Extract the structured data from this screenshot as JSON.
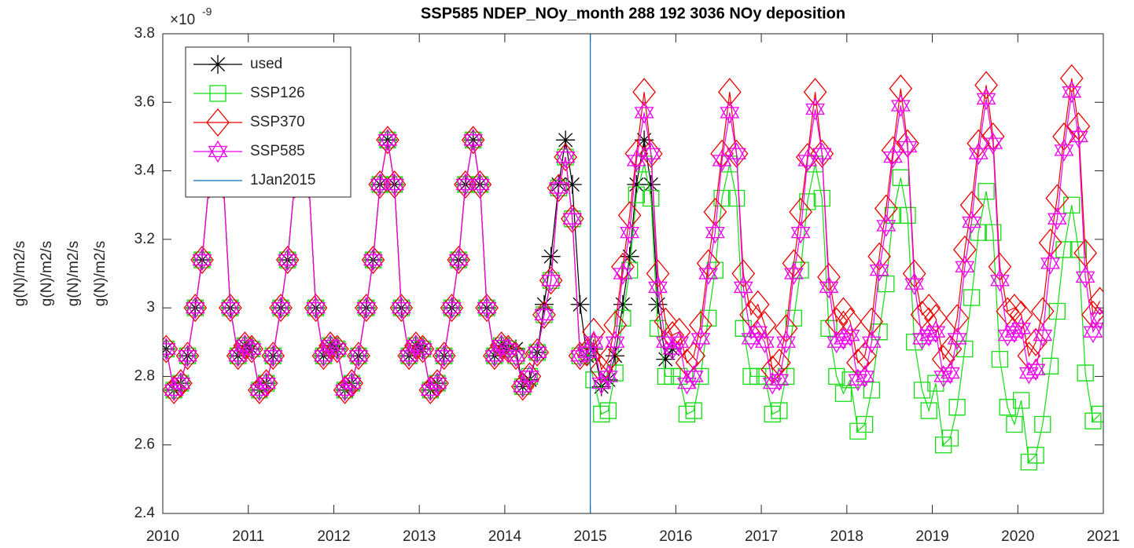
{
  "chart_data": {
    "type": "line",
    "title": "SSP585 NDEP_NOy_month  288 192 3036   NOy deposition",
    "ylabel": [
      "g(N)/m2/s",
      "g(N)/m2/s",
      "g(N)/m2/s",
      "g(N)/m2/s"
    ],
    "y_multiplier": {
      "base": "×10",
      "exponent": "-9"
    },
    "xlim": [
      2010,
      2021
    ],
    "xticks": [
      2010,
      2011,
      2012,
      2013,
      2014,
      2015,
      2016,
      2017,
      2018,
      2019,
      2020,
      2021
    ],
    "ylim": [
      2.4,
      3.8
    ],
    "yticks": [
      2.4,
      2.6,
      2.8,
      3,
      3.2,
      3.4,
      3.6,
      3.8
    ],
    "legend": "northwest",
    "grid": false,
    "x": [
      2010.04,
      2010.13,
      2010.21,
      2010.29,
      2010.38,
      2010.46,
      2010.54,
      2010.63,
      2010.71,
      2010.79,
      2010.88,
      2010.96,
      2011.04,
      2011.13,
      2011.21,
      2011.29,
      2011.38,
      2011.46,
      2011.54,
      2011.63,
      2011.71,
      2011.79,
      2011.88,
      2011.96,
      2012.04,
      2012.13,
      2012.21,
      2012.29,
      2012.38,
      2012.46,
      2012.54,
      2012.63,
      2012.71,
      2012.79,
      2012.88,
      2012.96,
      2013.04,
      2013.13,
      2013.21,
      2013.29,
      2013.38,
      2013.46,
      2013.54,
      2013.63,
      2013.71,
      2013.79,
      2013.88,
      2013.96,
      2014.04,
      2014.13,
      2014.21,
      2014.29,
      2014.38,
      2014.46,
      2014.54,
      2014.63,
      2014.71,
      2014.79,
      2014.88,
      2014.96,
      2015.04,
      2015.13,
      2015.21,
      2015.29,
      2015.38,
      2015.46,
      2015.54,
      2015.63,
      2015.71,
      2015.79,
      2015.88,
      2015.96,
      2016.04,
      2016.13,
      2016.21,
      2016.29,
      2016.38,
      2016.46,
      2016.54,
      2016.63,
      2016.71,
      2016.79,
      2016.88,
      2016.96,
      2017.04,
      2017.13,
      2017.21,
      2017.29,
      2017.38,
      2017.46,
      2017.54,
      2017.63,
      2017.71,
      2017.79,
      2017.88,
      2017.96,
      2018.04,
      2018.13,
      2018.21,
      2018.29,
      2018.38,
      2018.46,
      2018.54,
      2018.63,
      2018.71,
      2018.79,
      2018.88,
      2018.96,
      2019.04,
      2019.13,
      2019.21,
      2019.29,
      2019.38,
      2019.46,
      2019.54,
      2019.63,
      2019.71,
      2019.79,
      2019.88,
      2019.96,
      2020.04,
      2020.13,
      2020.21,
      2020.29,
      2020.38,
      2020.46,
      2020.54,
      2020.63,
      2020.71,
      2020.79,
      2020.88,
      2020.96
    ],
    "series": [
      {
        "name": "used",
        "color": "#000000",
        "marker": "asterisk",
        "values": [
          2.88,
          2.76,
          2.78,
          2.86,
          3.0,
          3.14,
          3.36,
          3.49,
          3.36,
          3.0,
          2.86,
          2.89,
          2.88,
          2.76,
          2.78,
          2.86,
          3.0,
          3.14,
          3.36,
          3.49,
          3.36,
          3.0,
          2.86,
          2.89,
          2.88,
          2.76,
          2.78,
          2.86,
          3.0,
          3.14,
          3.36,
          3.49,
          3.36,
          3.0,
          2.86,
          2.89,
          2.88,
          2.76,
          2.78,
          2.86,
          3.0,
          3.14,
          3.36,
          3.49,
          3.36,
          3.0,
          2.86,
          2.89,
          2.88,
          2.88,
          2.77,
          2.79,
          2.87,
          3.01,
          3.15,
          3.36,
          3.49,
          3.36,
          3.01,
          2.86,
          2.88,
          2.77,
          2.79,
          2.86,
          3.01,
          3.15,
          3.36,
          3.49,
          3.36,
          3.01,
          2.85,
          2.88,
          null,
          null,
          null,
          null,
          null,
          null,
          null,
          null,
          null,
          null,
          null,
          null,
          null,
          null,
          null,
          null,
          null,
          null,
          null,
          null,
          null,
          null,
          null,
          null,
          null,
          null,
          null,
          null,
          null,
          null,
          null,
          null,
          null,
          null,
          null,
          null,
          null,
          null,
          null,
          null,
          null,
          null,
          null,
          null,
          null,
          null,
          null,
          null,
          null,
          null,
          null,
          null,
          null,
          null,
          null,
          null,
          null,
          null,
          null,
          null
        ]
      },
      {
        "name": "SSP126",
        "color": "#11dd11",
        "marker": "square",
        "values": [
          2.88,
          2.76,
          2.78,
          2.86,
          3.0,
          3.14,
          3.36,
          3.49,
          3.36,
          3.0,
          2.86,
          2.89,
          2.88,
          2.76,
          2.78,
          2.86,
          3.0,
          3.14,
          3.36,
          3.49,
          3.36,
          3.0,
          2.86,
          2.89,
          2.88,
          2.76,
          2.78,
          2.86,
          3.0,
          3.14,
          3.36,
          3.49,
          3.36,
          3.0,
          2.86,
          2.89,
          2.88,
          2.76,
          2.78,
          2.86,
          3.0,
          3.14,
          3.36,
          3.49,
          3.36,
          3.0,
          2.86,
          2.89,
          2.88,
          2.86,
          2.77,
          2.8,
          2.87,
          2.98,
          3.08,
          3.35,
          3.44,
          3.26,
          2.86,
          2.87,
          2.79,
          2.69,
          2.7,
          2.81,
          2.97,
          3.11,
          3.33,
          3.42,
          3.32,
          2.94,
          2.8,
          2.8,
          2.8,
          2.69,
          2.7,
          2.8,
          2.97,
          3.11,
          3.32,
          3.42,
          3.32,
          2.94,
          2.8,
          2.8,
          2.8,
          2.69,
          2.7,
          2.8,
          2.97,
          3.11,
          3.31,
          3.42,
          3.32,
          2.94,
          2.8,
          2.75,
          2.79,
          2.64,
          2.66,
          2.76,
          2.93,
          3.07,
          3.27,
          3.38,
          3.27,
          2.9,
          2.76,
          2.7,
          2.78,
          2.6,
          2.62,
          2.71,
          2.88,
          3.03,
          3.22,
          3.34,
          3.22,
          2.85,
          2.71,
          2.66,
          2.73,
          2.55,
          2.57,
          2.66,
          2.83,
          2.99,
          3.17,
          3.3,
          3.17,
          2.81,
          2.67,
          2.69
        ]
      },
      {
        "name": "SSP370",
        "color": "#ee0000",
        "marker": "diamond",
        "values": [
          2.88,
          2.76,
          2.78,
          2.86,
          3.0,
          3.14,
          3.36,
          3.49,
          3.36,
          3.0,
          2.86,
          2.89,
          2.88,
          2.76,
          2.78,
          2.86,
          3.0,
          3.14,
          3.36,
          3.49,
          3.36,
          3.0,
          2.86,
          2.89,
          2.88,
          2.76,
          2.78,
          2.86,
          3.0,
          3.14,
          3.36,
          3.49,
          3.36,
          3.0,
          2.86,
          2.89,
          2.88,
          2.76,
          2.78,
          2.86,
          3.0,
          3.14,
          3.36,
          3.49,
          3.36,
          3.0,
          2.86,
          2.89,
          2.88,
          2.86,
          2.77,
          2.8,
          2.87,
          2.98,
          3.08,
          3.35,
          3.44,
          3.26,
          2.86,
          2.87,
          2.93,
          2.82,
          2.85,
          2.95,
          3.12,
          3.27,
          3.45,
          3.63,
          3.45,
          3.1,
          2.96,
          2.92,
          2.93,
          2.84,
          2.86,
          2.95,
          3.13,
          3.28,
          3.45,
          3.63,
          3.45,
          3.1,
          2.98,
          3.01,
          2.95,
          2.82,
          2.84,
          2.94,
          3.13,
          3.28,
          3.44,
          3.63,
          3.45,
          3.09,
          2.96,
          2.99,
          2.96,
          2.84,
          2.86,
          2.96,
          3.15,
          3.29,
          3.46,
          3.64,
          3.48,
          3.1,
          2.98,
          3.0,
          2.97,
          2.85,
          2.88,
          2.97,
          3.17,
          3.3,
          3.48,
          3.65,
          3.5,
          3.12,
          2.99,
          3.0,
          2.98,
          2.86,
          2.9,
          2.99,
          3.19,
          3.32,
          3.5,
          3.67,
          3.53,
          3.16,
          2.98,
          3.02
        ]
      },
      {
        "name": "SSP585",
        "color": "#ee00ee",
        "marker": "hexagram",
        "values": [
          2.88,
          2.76,
          2.78,
          2.86,
          3.0,
          3.14,
          3.36,
          3.49,
          3.36,
          3.0,
          2.86,
          2.89,
          2.88,
          2.76,
          2.78,
          2.86,
          3.0,
          3.14,
          3.36,
          3.49,
          3.36,
          3.0,
          2.86,
          2.89,
          2.88,
          2.76,
          2.78,
          2.86,
          3.0,
          3.14,
          3.36,
          3.49,
          3.36,
          3.0,
          2.86,
          2.89,
          2.88,
          2.76,
          2.78,
          2.86,
          3.0,
          3.14,
          3.36,
          3.49,
          3.36,
          3.0,
          2.86,
          2.89,
          2.88,
          2.86,
          2.77,
          2.8,
          2.87,
          2.98,
          3.08,
          3.35,
          3.44,
          3.26,
          2.86,
          2.87,
          2.9,
          2.78,
          2.8,
          2.9,
          3.1,
          3.22,
          3.43,
          3.57,
          3.45,
          3.06,
          2.9,
          2.88,
          2.9,
          2.78,
          2.8,
          2.91,
          3.1,
          3.22,
          3.43,
          3.57,
          3.45,
          3.06,
          2.91,
          2.93,
          2.9,
          2.78,
          2.79,
          2.9,
          3.1,
          3.22,
          3.43,
          3.58,
          3.45,
          3.06,
          2.9,
          2.91,
          2.92,
          2.79,
          2.8,
          2.9,
          3.11,
          3.24,
          3.44,
          3.59,
          3.47,
          3.07,
          2.91,
          2.92,
          2.93,
          2.8,
          2.81,
          2.91,
          3.12,
          3.25,
          3.45,
          3.61,
          3.48,
          3.08,
          2.92,
          2.93,
          2.94,
          2.81,
          2.82,
          2.92,
          3.13,
          3.26,
          3.46,
          3.63,
          3.5,
          3.09,
          2.93,
          2.97
        ]
      },
      {
        "name": "1Jan2015",
        "color": "#0072bd",
        "marker": "none",
        "x": [
          2015,
          2015
        ],
        "values": [
          2.4,
          3.8
        ]
      }
    ]
  }
}
